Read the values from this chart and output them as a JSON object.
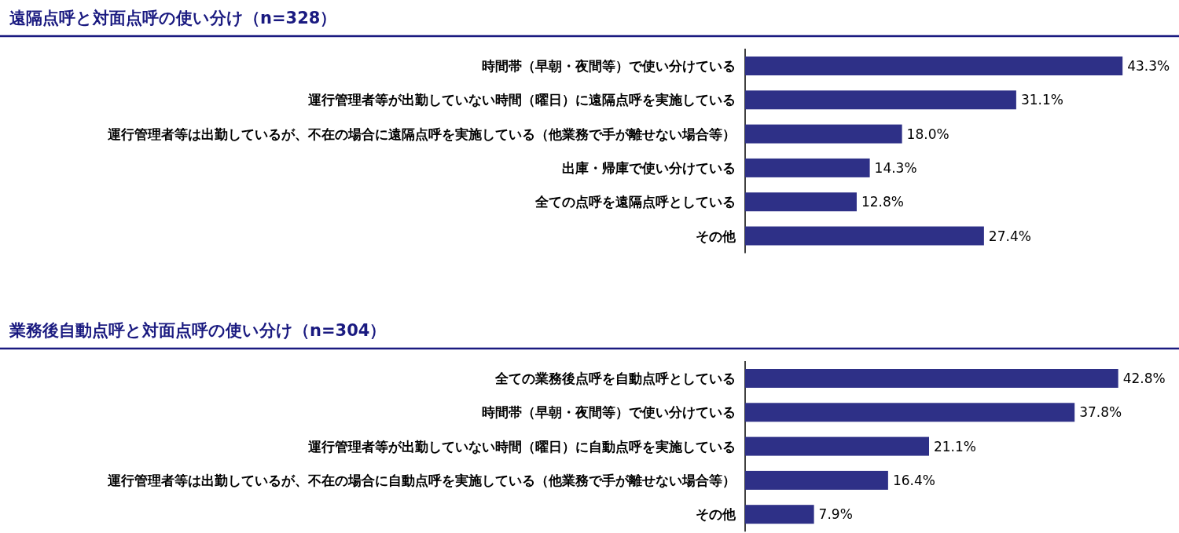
{
  "chart_data": [
    {
      "type": "bar",
      "orientation": "horizontal",
      "title": "遠隔点呼と対面点呼の使い分け（n=328）",
      "color": "#2e3087",
      "categories": [
        "時間帯（早朝・夜間等）で使い分けている",
        "運行管理者等が出勤していない時間（曜日）に遠隔点呼を実施している",
        "運行管理者等は出勤しているが、不在の場合に遠隔点呼を実施している（他業務で手が離せない場合等）",
        "出庫・帰庫で使い分けている",
        "全ての点呼を遠隔点呼としている",
        "その他"
      ],
      "values": [
        43.3,
        31.1,
        18.0,
        14.3,
        12.8,
        27.4
      ],
      "value_labels": [
        "43.3%",
        "31.1%",
        "18.0%",
        "14.3%",
        "12.8%",
        "27.4%"
      ]
    },
    {
      "type": "bar",
      "orientation": "horizontal",
      "title": "業務後自動点呼と対面点呼の使い分け（n=304）",
      "color": "#2e3087",
      "categories": [
        "全ての業務後点呼を自動点呼としている",
        "時間帯（早朝・夜間等）で使い分けている",
        "運行管理者等が出勤していない時間（曜日）に自動点呼を実施している",
        "運行管理者等は出勤しているが、不在の場合に自動点呼を実施している（他業務で手が離せない場合等）",
        "その他"
      ],
      "values": [
        42.8,
        37.8,
        21.1,
        16.4,
        7.9
      ],
      "value_labels": [
        "42.8%",
        "37.8%",
        "21.1%",
        "16.4%",
        "7.9%"
      ]
    }
  ]
}
